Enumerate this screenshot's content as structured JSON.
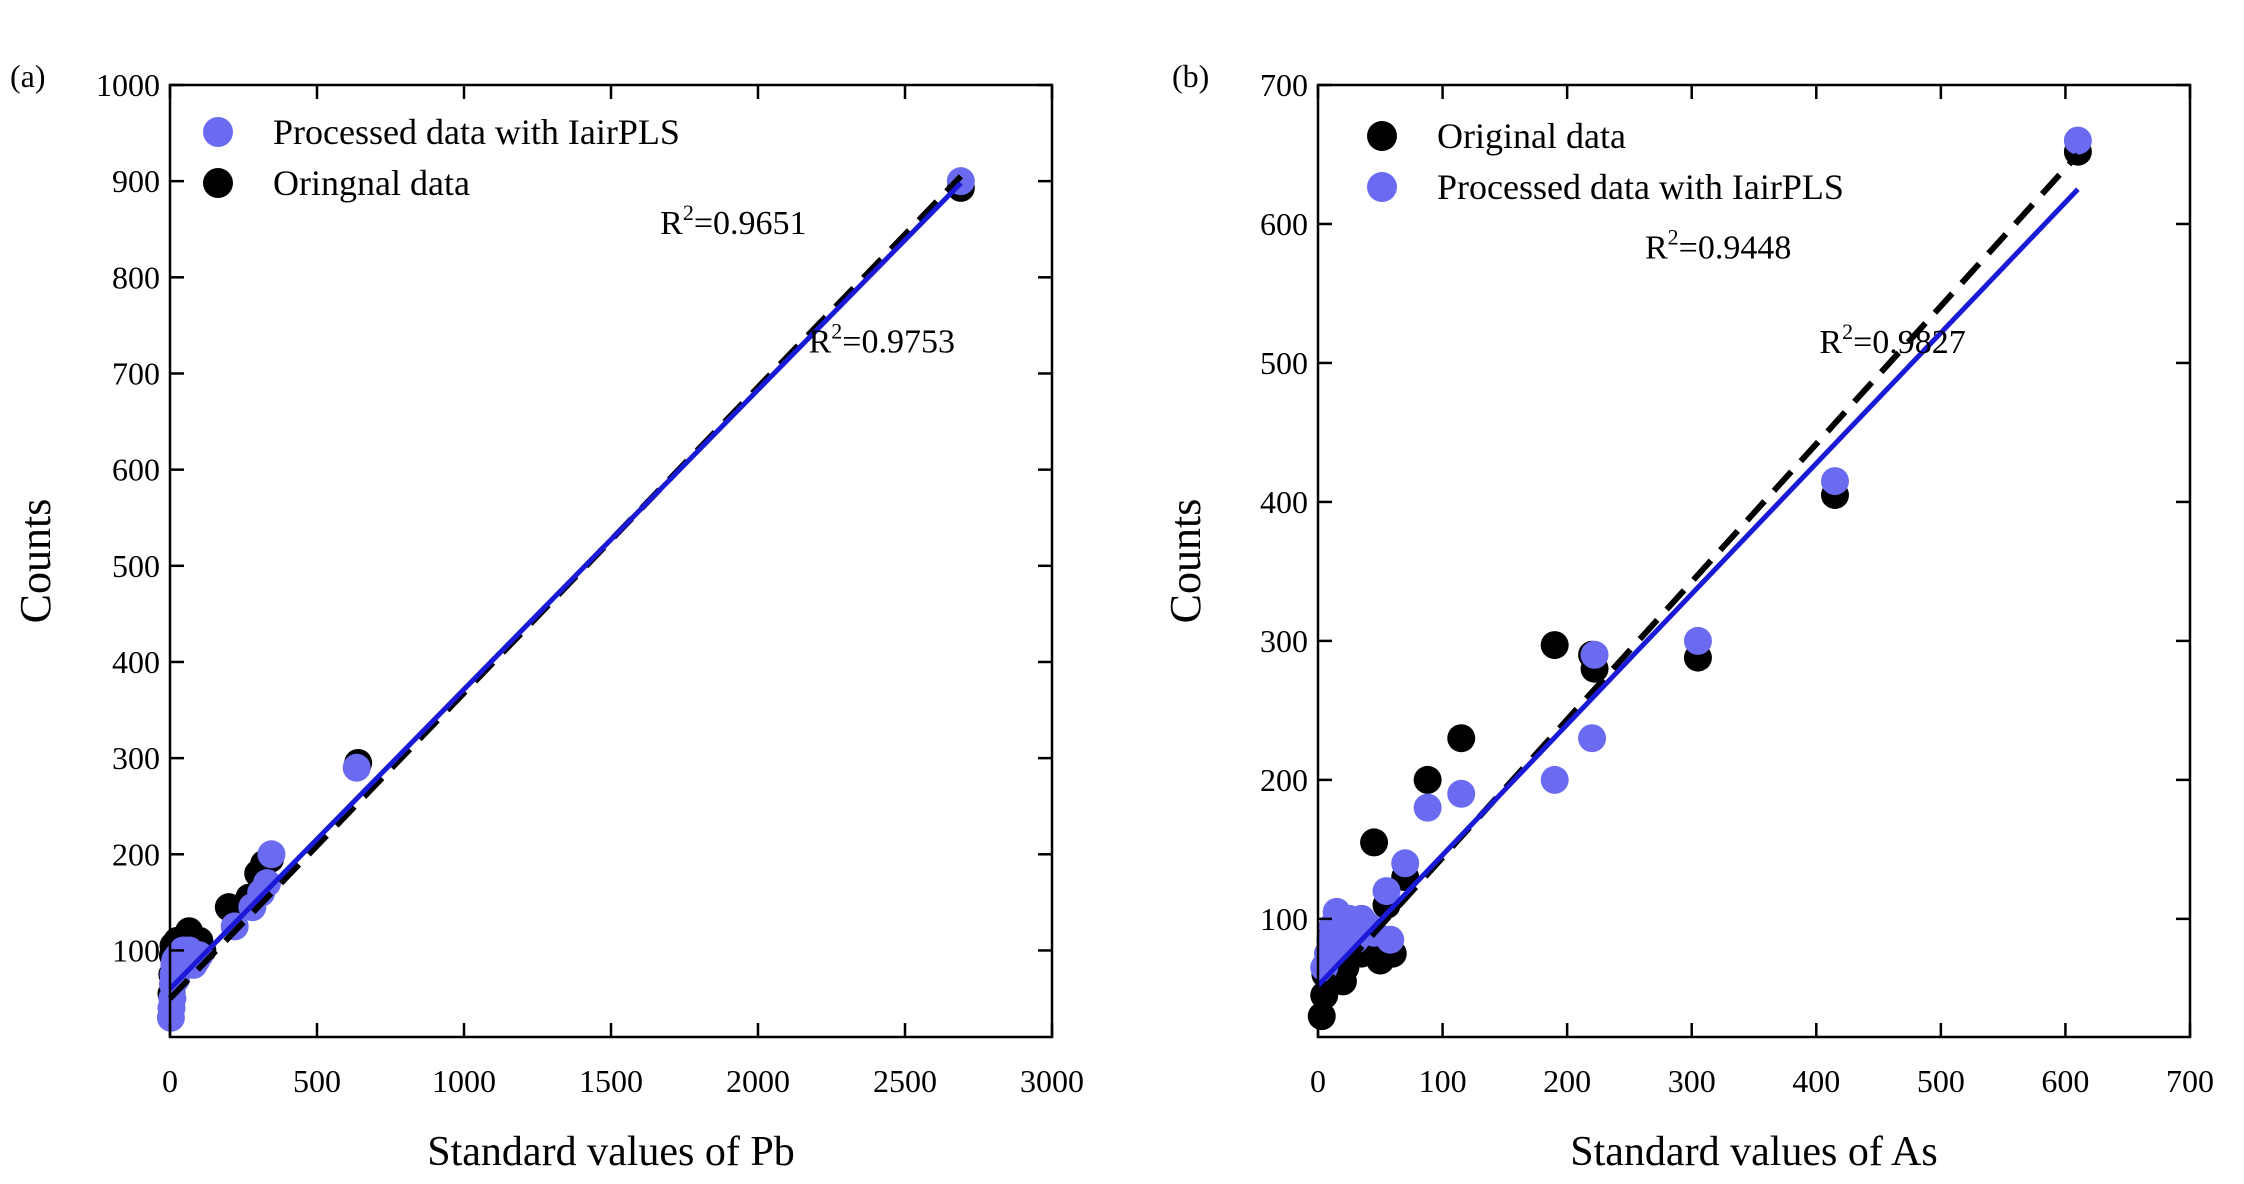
{
  "chart_data": [
    {
      "type": "scatter",
      "panel_label": "(a)",
      "xlabel": "Standard values of Pb",
      "ylabel": "Counts",
      "xlim": [
        0,
        3000
      ],
      "ylim": [
        10,
        1000
      ],
      "x_ticks": [
        0,
        500,
        1000,
        1500,
        2000,
        2500,
        3000
      ],
      "y_ticks": [
        100,
        200,
        300,
        400,
        500,
        600,
        700,
        800,
        900,
        1000
      ],
      "legend_position": "top-left",
      "legend": [
        "Processed data with IairPLS",
        "Oringnal data"
      ],
      "series": [
        {
          "name": "Oringnal data",
          "color": "#000000",
          "points": [
            [
              5,
              55
            ],
            [
              8,
              75
            ],
            [
              10,
              95
            ],
            [
              12,
              105
            ],
            [
              15,
              90
            ],
            [
              18,
              100
            ],
            [
              20,
              80
            ],
            [
              25,
              110
            ],
            [
              30,
              85
            ],
            [
              35,
              95
            ],
            [
              40,
              100
            ],
            [
              45,
              90
            ],
            [
              50,
              105
            ],
            [
              55,
              95
            ],
            [
              60,
              110
            ],
            [
              65,
              120
            ],
            [
              70,
              100
            ],
            [
              80,
              95
            ],
            [
              90,
              105
            ],
            [
              100,
              110
            ],
            [
              110,
              100
            ],
            [
              200,
              145
            ],
            [
              270,
              155
            ],
            [
              300,
              180
            ],
            [
              320,
              190
            ],
            [
              340,
              195
            ],
            [
              640,
              295
            ],
            [
              2690,
              893
            ]
          ],
          "fit": {
            "x": [
              0,
              2690
            ],
            "y": [
              50,
              905
            ],
            "style": "dashed"
          }
        },
        {
          "name": "Processed data with IairPLS",
          "color": "#6B6BF2",
          "points": [
            [
              3,
              30
            ],
            [
              5,
              40
            ],
            [
              8,
              50
            ],
            [
              10,
              65
            ],
            [
              12,
              75
            ],
            [
              15,
              85
            ],
            [
              18,
              90
            ],
            [
              20,
              70
            ],
            [
              25,
              80
            ],
            [
              30,
              95
            ],
            [
              35,
              85
            ],
            [
              40,
              90
            ],
            [
              45,
              100
            ],
            [
              50,
              95
            ],
            [
              55,
              85
            ],
            [
              60,
              90
            ],
            [
              65,
              100
            ],
            [
              70,
              95
            ],
            [
              80,
              85
            ],
            [
              90,
              90
            ],
            [
              100,
              95
            ],
            [
              220,
              125
            ],
            [
              280,
              145
            ],
            [
              310,
              160
            ],
            [
              330,
              170
            ],
            [
              345,
              200
            ],
            [
              635,
              290
            ],
            [
              2690,
              900
            ]
          ],
          "fit": {
            "x": [
              0,
              2690
            ],
            "y": [
              60,
              898
            ],
            "style": "solid"
          }
        }
      ],
      "annotations": [
        {
          "base": "R",
          "sup": "2",
          "value": "=0.9651",
          "x": 2165,
          "y": 845
        },
        {
          "base": "R",
          "sup": "2",
          "value": "=0.9753",
          "x": 2670,
          "y": 722
        }
      ]
    },
    {
      "type": "scatter",
      "panel_label": "(b)",
      "xlabel": "Standard values of As",
      "ylabel": "Counts",
      "xlim": [
        0,
        700
      ],
      "ylim": [
        15,
        700
      ],
      "x_ticks": [
        0,
        100,
        200,
        300,
        400,
        500,
        600,
        700
      ],
      "y_ticks": [
        100,
        200,
        300,
        400,
        500,
        600,
        700
      ],
      "legend_position": "top-left",
      "legend": [
        "Original data",
        "Processed data with IairPLS"
      ],
      "series": [
        {
          "name": "Original data",
          "color": "#000000",
          "points": [
            [
              3,
              30
            ],
            [
              5,
              45
            ],
            [
              6,
              60
            ],
            [
              8,
              70
            ],
            [
              10,
              85
            ],
            [
              12,
              90
            ],
            [
              15,
              80
            ],
            [
              18,
              75
            ],
            [
              20,
              55
            ],
            [
              22,
              65
            ],
            [
              25,
              80
            ],
            [
              30,
              90
            ],
            [
              35,
              75
            ],
            [
              40,
              85
            ],
            [
              45,
              155
            ],
            [
              50,
              70
            ],
            [
              55,
              110
            ],
            [
              60,
              75
            ],
            [
              70,
              130
            ],
            [
              88,
              200
            ],
            [
              115,
              230
            ],
            [
              190,
              297
            ],
            [
              220,
              290
            ],
            [
              222,
              280
            ],
            [
              305,
              288
            ],
            [
              415,
              405
            ],
            [
              610,
              652
            ]
          ],
          "fit": {
            "x": [
              0,
              610
            ],
            "y": [
              45,
              650
            ],
            "style": "dashed"
          }
        },
        {
          "name": "Processed data with IairPLS",
          "color": "#6B6BF2",
          "points": [
            [
              5,
              65
            ],
            [
              8,
              75
            ],
            [
              10,
              85
            ],
            [
              12,
              95
            ],
            [
              15,
              105
            ],
            [
              18,
              80
            ],
            [
              20,
              90
            ],
            [
              25,
              100
            ],
            [
              30,
              85
            ],
            [
              35,
              100
            ],
            [
              40,
              95
            ],
            [
              45,
              90
            ],
            [
              55,
              120
            ],
            [
              58,
              85
            ],
            [
              70,
              140
            ],
            [
              88,
              180
            ],
            [
              115,
              190
            ],
            [
              190,
              200
            ],
            [
              220,
              230
            ],
            [
              222,
              290
            ],
            [
              305,
              300
            ],
            [
              415,
              415
            ],
            [
              610,
              660
            ]
          ],
          "fit": {
            "x": [
              0,
              610
            ],
            "y": [
              52,
              625
            ],
            "style": "solid"
          }
        }
      ],
      "annotations": [
        {
          "base": "R",
          "sup": "2",
          "value": "=0.9448",
          "x": 380,
          "y": 575
        },
        {
          "base": "R",
          "sup": "2",
          "value": "=0.9827",
          "x": 520,
          "y": 507
        }
      ]
    }
  ]
}
